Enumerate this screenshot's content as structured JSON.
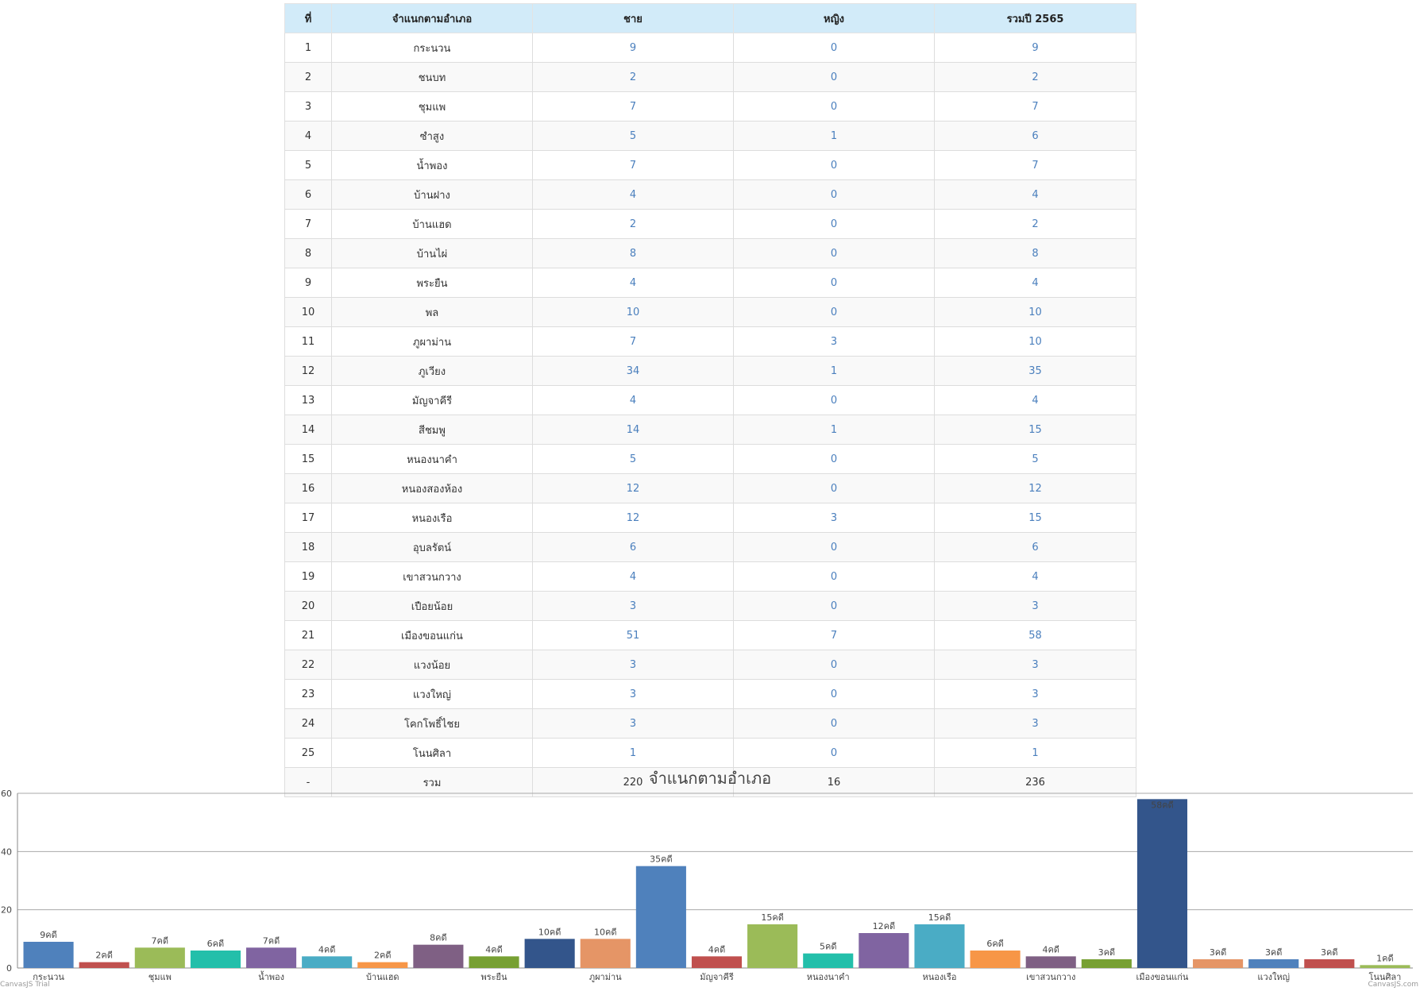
{
  "table": {
    "headers": [
      "ที่",
      "จำแนกตามอำเภอ",
      "ชาย",
      "หญิง",
      "รวมปี 2565"
    ],
    "rows": [
      [
        "1",
        "กระนวน",
        "9",
        "0",
        "9"
      ],
      [
        "2",
        "ชนบท",
        "2",
        "0",
        "2"
      ],
      [
        "3",
        "ชุมแพ",
        "7",
        "0",
        "7"
      ],
      [
        "4",
        "ซำสูง",
        "5",
        "1",
        "6"
      ],
      [
        "5",
        "น้ำพอง",
        "7",
        "0",
        "7"
      ],
      [
        "6",
        "บ้านฝาง",
        "4",
        "0",
        "4"
      ],
      [
        "7",
        "บ้านแฮด",
        "2",
        "0",
        "2"
      ],
      [
        "8",
        "บ้านไผ่",
        "8",
        "0",
        "8"
      ],
      [
        "9",
        "พระยืน",
        "4",
        "0",
        "4"
      ],
      [
        "10",
        "พล",
        "10",
        "0",
        "10"
      ],
      [
        "11",
        "ภูผาม่าน",
        "7",
        "3",
        "10"
      ],
      [
        "12",
        "ภูเวียง",
        "34",
        "1",
        "35"
      ],
      [
        "13",
        "มัญจาคีรี",
        "4",
        "0",
        "4"
      ],
      [
        "14",
        "สีชมพู",
        "14",
        "1",
        "15"
      ],
      [
        "15",
        "หนองนาคำ",
        "5",
        "0",
        "5"
      ],
      [
        "16",
        "หนองสองห้อง",
        "12",
        "0",
        "12"
      ],
      [
        "17",
        "หนองเรือ",
        "12",
        "3",
        "15"
      ],
      [
        "18",
        "อุบลรัตน์",
        "6",
        "0",
        "6"
      ],
      [
        "19",
        "เขาสวนกวาง",
        "4",
        "0",
        "4"
      ],
      [
        "20",
        "เปือยน้อย",
        "3",
        "0",
        "3"
      ],
      [
        "21",
        "เมืองขอนแก่น",
        "51",
        "7",
        "58"
      ],
      [
        "22",
        "แวงน้อย",
        "3",
        "0",
        "3"
      ],
      [
        "23",
        "แวงใหญ่",
        "3",
        "0",
        "3"
      ],
      [
        "24",
        "โคกโพธิ์ไชย",
        "3",
        "0",
        "3"
      ],
      [
        "25",
        "โนนศิลา",
        "1",
        "0",
        "1"
      ]
    ],
    "total": [
      "-",
      "รวม",
      "220",
      "16",
      "236"
    ]
  },
  "chart_data": {
    "type": "bar",
    "title": "จำแนกตามอำเภอ",
    "categories": [
      "กระนวน",
      "ชนบท",
      "ชุมแพ",
      "ซำสูง",
      "น้ำพอง",
      "บ้านฝาง",
      "บ้านแฮด",
      "บ้านไผ่",
      "พระยืน",
      "พล",
      "ภูผาม่าน",
      "ภูเวียง",
      "มัญจาคีรี",
      "สีชมพู",
      "หนองนาคำ",
      "หนองสองห้อง",
      "หนองเรือ",
      "อุบลรัตน์",
      "เขาสวนกวาง",
      "เปือยน้อย",
      "เมืองขอนแก่น",
      "แวงน้อย",
      "แวงใหญ่",
      "โคกโพธิ์ไชย",
      "โนนศิลา"
    ],
    "values": [
      9,
      2,
      7,
      6,
      7,
      4,
      2,
      8,
      4,
      10,
      10,
      35,
      4,
      15,
      5,
      12,
      15,
      6,
      4,
      3,
      58,
      3,
      3,
      3,
      1
    ],
    "data_labels": [
      "9คดี",
      "2คดี",
      "7คดี",
      "6คดี",
      "7คดี",
      "4คดี",
      "2คดี",
      "8คดี",
      "4คดี",
      "10คดี",
      "10คดี",
      "35คดี",
      "4คดี",
      "15คดี",
      "5คดี",
      "12คดี",
      "15คดี",
      "6คดี",
      "4คดี",
      "3คดี",
      "58คดี",
      "3คดี",
      "3คดี",
      "3คดี",
      "1คดี"
    ],
    "tick_labels": [
      "กระนวน",
      "ชุมแพ",
      "น้ำพอง",
      "บ้านแฮด",
      "พระยืน",
      "ภูผาม่าน",
      "มัญจาคีรี",
      "หนองนาคำ",
      "หนองเรือ",
      "เขาสวนกวาง",
      "เมืองขอนแก่น",
      "แวงใหญ่",
      "โนนศิลา"
    ],
    "y_ticks": [
      "0",
      "20",
      "40",
      "60"
    ],
    "ylim": [
      0,
      60
    ],
    "grid": true,
    "colors": [
      "#4f81bc",
      "#c0504e",
      "#9bbb58",
      "#23bfaa",
      "#8064a1",
      "#4aacc5",
      "#f79647",
      "#7f6084",
      "#77a033",
      "#33558b",
      "#e59566"
    ],
    "watermark_left": "CanvasJS Trial",
    "watermark_right": "CanvasJS.com"
  }
}
